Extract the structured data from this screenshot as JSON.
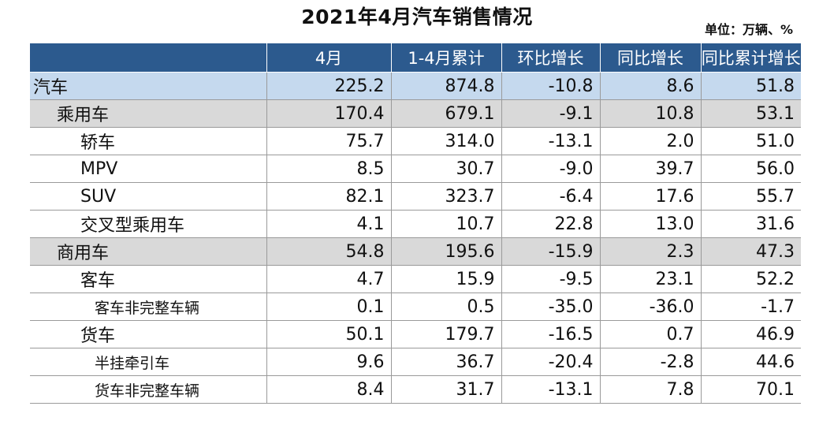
{
  "title": "2021年4月汽车销售情况",
  "unit": "单位：万辆、%",
  "table": {
    "headers": [
      "",
      "4月",
      "1-4月累计",
      "环比增长",
      "同比增长",
      "同比累计增长"
    ],
    "rows": [
      {
        "level": 0,
        "cells": [
          "汽车",
          "225.2",
          "874.8",
          "-10.8",
          "8.6",
          "51.8"
        ]
      },
      {
        "level": 1,
        "cells": [
          "乘用车",
          "170.4",
          "679.1",
          "-9.1",
          "10.8",
          "53.1"
        ]
      },
      {
        "level": 2,
        "cells": [
          "轿车",
          "75.7",
          "314.0",
          "-13.1",
          "2.0",
          "51.0"
        ]
      },
      {
        "level": 2,
        "cells": [
          "MPV",
          "8.5",
          "30.7",
          "-9.0",
          "39.7",
          "56.0"
        ]
      },
      {
        "level": 2,
        "cells": [
          "SUV",
          "82.1",
          "323.7",
          "-6.4",
          "17.6",
          "55.7"
        ]
      },
      {
        "level": 2,
        "cells": [
          "交叉型乘用车",
          "4.1",
          "10.7",
          "22.8",
          "13.0",
          "31.6"
        ]
      },
      {
        "level": 1,
        "cells": [
          "商用车",
          "54.8",
          "195.6",
          "-15.9",
          "2.3",
          "47.3"
        ]
      },
      {
        "level": 2,
        "cells": [
          "客车",
          "4.7",
          "15.9",
          "-9.5",
          "23.1",
          "52.2"
        ]
      },
      {
        "level": 3,
        "cells": [
          "客车非完整车辆",
          "0.1",
          "0.5",
          "-35.0",
          "-36.0",
          "-1.7"
        ]
      },
      {
        "level": 2,
        "cells": [
          "货车",
          "50.1",
          "179.7",
          "-16.5",
          "0.7",
          "46.9"
        ]
      },
      {
        "level": 3,
        "cells": [
          "半挂牵引车",
          "9.6",
          "36.7",
          "-20.4",
          "-2.8",
          "44.6"
        ]
      },
      {
        "level": 3,
        "cells": [
          "货车非完整车辆",
          "8.4",
          "31.7",
          "-13.1",
          "7.8",
          "70.1"
        ]
      }
    ]
  },
  "colors": {
    "header_bg": "#2c5a8e",
    "total_row_bg": "#c5d9ee",
    "category_row_bg": "#d9d9d9"
  }
}
